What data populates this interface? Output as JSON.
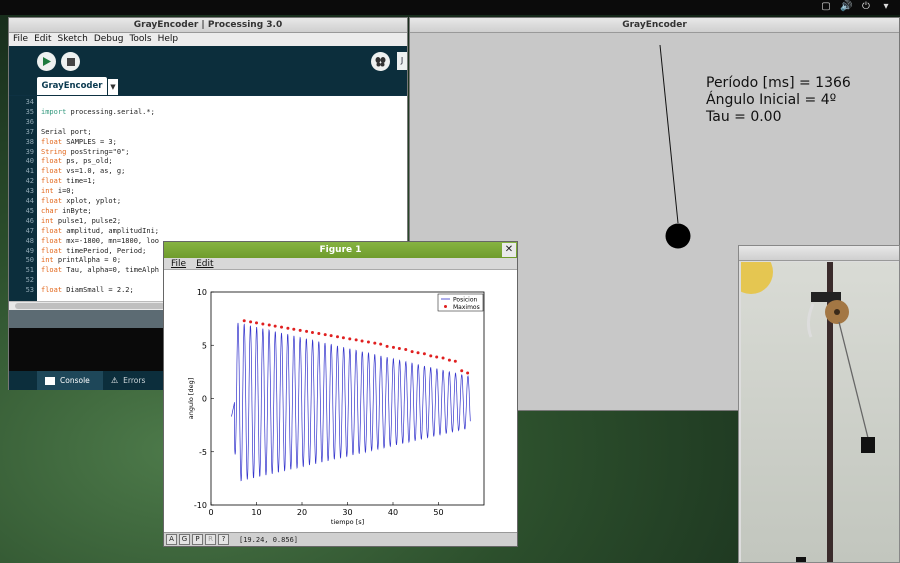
{
  "ide": {
    "title": "GrayEncoder | Processing 3.0",
    "menu": [
      "File",
      "Edit",
      "Sketch",
      "Debug",
      "Tools",
      "Help"
    ],
    "tab": "GrayEncoder",
    "mode_label": "J",
    "code": [
      {
        "n": "34",
        "t": ""
      },
      {
        "n": "35",
        "t": "import processing.serial.*;"
      },
      {
        "n": "36",
        "t": ""
      },
      {
        "n": "37",
        "t": "Serial port;"
      },
      {
        "n": "38",
        "t": "float SAMPLES = 3;"
      },
      {
        "n": "39",
        "t": "String posString=\"0\";"
      },
      {
        "n": "40",
        "t": "float ps, ps_old;"
      },
      {
        "n": "41",
        "t": "float vs=1.0, as, g;"
      },
      {
        "n": "42",
        "t": "float time=1;"
      },
      {
        "n": "43",
        "t": "int i=0;"
      },
      {
        "n": "44",
        "t": "float xplot, yplot;"
      },
      {
        "n": "45",
        "t": "char inByte;"
      },
      {
        "n": "46",
        "t": "int pulse1, pulse2;"
      },
      {
        "n": "47",
        "t": "float amplitud, amplitudIni;"
      },
      {
        "n": "48",
        "t": "float mx=-1800, mn=1800, loo"
      },
      {
        "n": "49",
        "t": "float timePeriod, Period;"
      },
      {
        "n": "50",
        "t": "int printAlpha = 0;"
      },
      {
        "n": "51",
        "t": "float Tau, alpha=0, timeAlph"
      },
      {
        "n": "52",
        "t": ""
      },
      {
        "n": "53",
        "t": "float DiamSmall = 2.2;"
      }
    ],
    "status_tabs": [
      "Console",
      "Errors"
    ]
  },
  "sketch": {
    "title": "GrayEncoder",
    "lines": [
      "Período [ms] = 1366",
      "Ángulo Inicial = 4º",
      "Tau = 0.00"
    ]
  },
  "figure": {
    "title": "Figure 1",
    "menu": [
      "File",
      "Edit"
    ],
    "toolbar": [
      "A",
      "G",
      "P",
      "R",
      "?"
    ],
    "coords": "[19.24, 0.856]"
  },
  "chart_data": {
    "type": "line",
    "title": "",
    "xlabel": "tiempo [s]",
    "ylabel": "angulo [deg]",
    "xlim": [
      0,
      60
    ],
    "ylim": [
      -10,
      10
    ],
    "xticks": [
      0,
      10,
      20,
      30,
      40,
      50
    ],
    "yticks": [
      -10,
      -5,
      0,
      5,
      10
    ],
    "legend": {
      "placement": "top-right",
      "entries": [
        "Posicion",
        "Maximos"
      ]
    },
    "grid": false,
    "colors": {
      "Posicion": "#3333cc",
      "Maximos": "#e02020"
    },
    "series": [
      {
        "name": "Posicion",
        "kind": "damped-sine",
        "t_start": 4.5,
        "t_end": 57,
        "period_s": 1.366,
        "initial_amplitude": 7.6,
        "final_amplitude": 2.4
      },
      {
        "name": "Maximos",
        "x": [
          7.3,
          8.7,
          10.0,
          11.4,
          12.8,
          14.1,
          15.5,
          16.9,
          18.2,
          19.6,
          21.0,
          22.3,
          23.7,
          25.1,
          26.4,
          27.8,
          29.1,
          30.5,
          31.9,
          33.2,
          34.6,
          36.0,
          37.3,
          38.7,
          40.1,
          41.4,
          42.8,
          44.2,
          45.5,
          46.9,
          48.3,
          49.6,
          51.0,
          52.4,
          53.7,
          55.1,
          56.4
        ],
        "y": [
          7.3,
          7.2,
          7.1,
          7.0,
          6.9,
          6.8,
          6.7,
          6.6,
          6.5,
          6.4,
          6.3,
          6.2,
          6.1,
          6.0,
          5.9,
          5.8,
          5.7,
          5.6,
          5.5,
          5.4,
          5.3,
          5.2,
          5.1,
          4.9,
          4.8,
          4.7,
          4.6,
          4.4,
          4.3,
          4.2,
          4.0,
          3.9,
          3.8,
          3.6,
          3.5,
          2.6,
          2.4
        ]
      }
    ]
  },
  "cam": {}
}
